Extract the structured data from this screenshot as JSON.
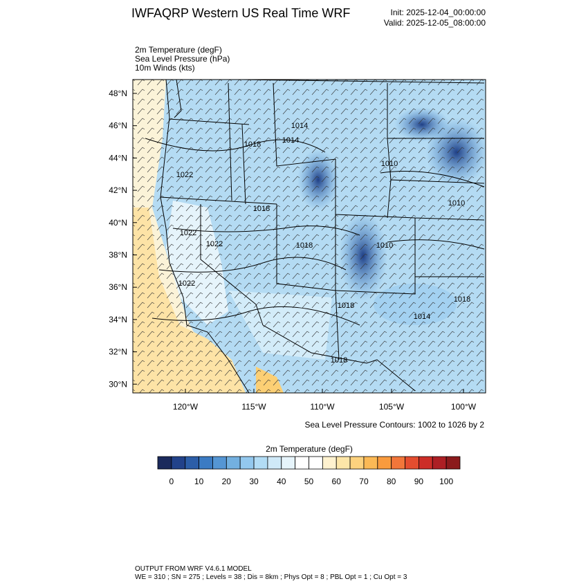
{
  "header": {
    "title": "IWFAQRP Western US Real Time WRF",
    "init": "Init: 2025-12-04_00:00:00",
    "valid": "Valid: 2025-12-05_08:00:00"
  },
  "fields": [
    "2m Temperature   (degF)",
    "Sea Level Pressure   (hPa)",
    "10m Winds   (kts)"
  ],
  "map": {
    "lat_labels": [
      "48°N",
      "46°N",
      "44°N",
      "42°N",
      "40°N",
      "38°N",
      "36°N",
      "34°N",
      "32°N",
      "30°N"
    ],
    "lon_labels": [
      "120°W",
      "115°W",
      "110°W",
      "105°W",
      "100°W"
    ],
    "contour_labels": [
      "1014",
      "1018",
      "1014",
      "1010",
      "1022",
      "1018",
      "1010",
      "1022",
      "1022",
      "1018",
      "1010",
      "1022",
      "1018",
      "1014",
      "1018",
      "1018"
    ],
    "contour_note": "Sea Level Pressure Contours: 1002 to 1026 by 2"
  },
  "colorbar": {
    "title": "2m Temperature  (degF)",
    "colors": [
      "#1b2a5c",
      "#22428a",
      "#2c5ea8",
      "#3b7bc3",
      "#5596d4",
      "#73b0e0",
      "#93c8ee",
      "#b2dcf5",
      "#cfe9f8",
      "#e6f4fb",
      "#ffffff",
      "#ffffff",
      "#fff2cf",
      "#fde6a8",
      "#fdd27e",
      "#fcb955",
      "#f99b3e",
      "#f2763a",
      "#e44d2f",
      "#cc2d27",
      "#ad1f24",
      "#8b1a1c"
    ],
    "labels": [
      "0",
      "10",
      "20",
      "30",
      "40",
      "50",
      "60",
      "70",
      "80",
      "90",
      "100"
    ]
  },
  "footer": {
    "line1": "OUTPUT FROM WRF V4.6.1 MODEL",
    "line2": "WE = 310 ; SN = 275 ; Levels = 38 ; Dis = 8km ; Phys Opt = 8 ; PBL Opt = 1 ; Cu Opt = 3"
  }
}
